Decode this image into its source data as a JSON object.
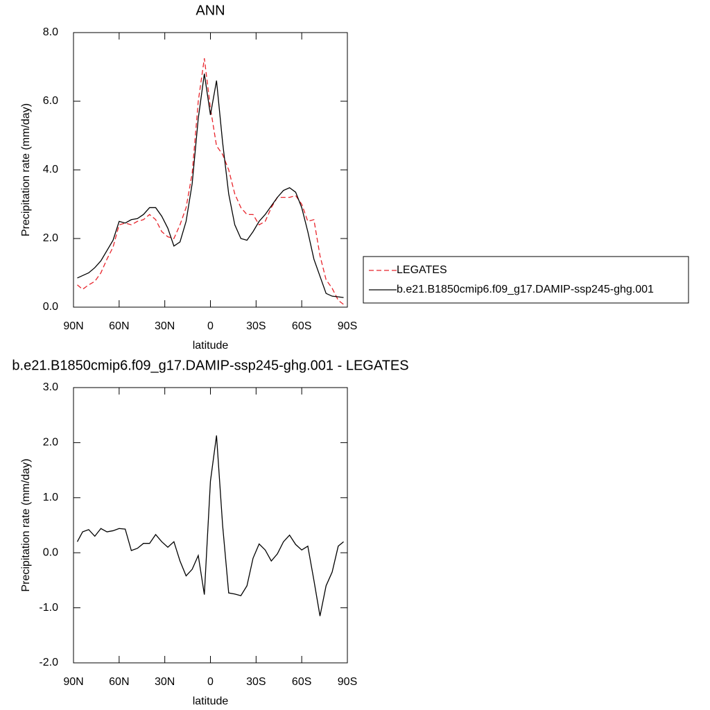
{
  "chart_data": [
    {
      "type": "line",
      "title": "ANN",
      "xlabel": "latitude",
      "ylabel": "Precipitation rate (mm/day)",
      "x": [
        87.5,
        84,
        80,
        76,
        72,
        68,
        64,
        60,
        56,
        52,
        48,
        44,
        40,
        36,
        32,
        28,
        24,
        20,
        16,
        12,
        8,
        4,
        0,
        -4,
        -8,
        -12,
        -16,
        -20,
        -24,
        -28,
        -32,
        -36,
        -40,
        -44,
        -48,
        -52,
        -56,
        -60,
        -64,
        -68,
        -72,
        -76,
        -80,
        -84,
        -87.5
      ],
      "series": [
        {
          "name": "LEGATES",
          "color": "#e8232a",
          "linestyle": "dashed",
          "values": [
            0.65,
            0.52,
            0.65,
            0.75,
            1.0,
            1.4,
            1.75,
            2.4,
            2.45,
            2.4,
            2.5,
            2.55,
            2.7,
            2.55,
            2.2,
            2.05,
            2.0,
            2.4,
            2.9,
            3.9,
            6.0,
            7.25,
            5.8,
            4.7,
            4.45,
            4.0,
            3.3,
            2.9,
            2.7,
            2.7,
            2.4,
            2.5,
            2.9,
            3.2,
            3.2,
            3.2,
            3.25,
            3.0,
            2.5,
            2.55,
            1.5,
            0.8,
            0.55,
            0.2,
            0.08
          ]
        },
        {
          "name": "b.e21.B1850cmip6.f09_g17.DAMIP-ssp245-ghg.001",
          "color": "#000000",
          "linestyle": "solid",
          "values": [
            0.85,
            0.92,
            1.0,
            1.15,
            1.35,
            1.65,
            1.95,
            2.5,
            2.45,
            2.55,
            2.58,
            2.7,
            2.9,
            2.9,
            2.65,
            2.3,
            1.78,
            1.9,
            2.5,
            3.6,
            5.5,
            6.8,
            5.6,
            6.6,
            4.8,
            3.3,
            2.4,
            2.0,
            1.95,
            2.2,
            2.5,
            2.7,
            2.95,
            3.2,
            3.4,
            3.48,
            3.35,
            2.9,
            2.2,
            1.4,
            0.9,
            0.4,
            0.32,
            0.3,
            0.28
          ]
        }
      ],
      "xlim": [
        90,
        -90
      ],
      "xticks": [
        {
          "value": 90,
          "label": "90N"
        },
        {
          "value": 60,
          "label": "60N"
        },
        {
          "value": 30,
          "label": "30N"
        },
        0,
        {
          "value": -30,
          "label": "30S"
        },
        {
          "value": -60,
          "label": "60S"
        },
        {
          "value": -90,
          "label": "90S"
        }
      ],
      "ylim": [
        0,
        8
      ],
      "yticks": [
        {
          "value": 0,
          "label": "0.0"
        },
        {
          "value": 2,
          "label": "2.0"
        },
        {
          "value": 4,
          "label": "4.0"
        },
        {
          "value": 6,
          "label": "6.0"
        },
        {
          "value": 8,
          "label": "8.0"
        }
      ],
      "legend": "outside-right"
    },
    {
      "type": "line",
      "title": "b.e21.B1850cmip6.f09_g17.DAMIP-ssp245-ghg.001 - LEGATES",
      "xlabel": "latitude",
      "ylabel": "Precipitation rate (mm/day)",
      "x": [
        87.5,
        84,
        80,
        76,
        72,
        68,
        64,
        60,
        56,
        52,
        48,
        44,
        40,
        36,
        32,
        28,
        24,
        20,
        16,
        12,
        8,
        4,
        0,
        -4,
        -8,
        -12,
        -16,
        -20,
        -24,
        -28,
        -32,
        -36,
        -40,
        -44,
        -48,
        -52,
        -56,
        -60,
        -64,
        -68,
        -72,
        -76,
        -80,
        -84,
        -87.5
      ],
      "series": [
        {
          "color": "#000000",
          "linestyle": "solid",
          "values": [
            0.2,
            0.38,
            0.42,
            0.3,
            0.44,
            0.38,
            0.4,
            0.44,
            0.43,
            0.04,
            0.08,
            0.17,
            0.17,
            0.33,
            0.2,
            0.1,
            0.2,
            -0.15,
            -0.42,
            -0.3,
            -0.05,
            -0.76,
            1.3,
            2.13,
            0.5,
            -0.73,
            -0.75,
            -0.78,
            -0.6,
            -0.1,
            0.16,
            0.05,
            -0.15,
            -0.02,
            0.2,
            0.32,
            0.15,
            0.05,
            0.12,
            -0.5,
            -1.15,
            -0.6,
            -0.35,
            0.12,
            0.2
          ]
        }
      ],
      "xlim": [
        90,
        -90
      ],
      "xticks": [
        {
          "value": 90,
          "label": "90N"
        },
        {
          "value": 60,
          "label": "60N"
        },
        {
          "value": 30,
          "label": "30N"
        },
        0,
        {
          "value": -30,
          "label": "30S"
        },
        {
          "value": -60,
          "label": "60S"
        },
        {
          "value": -90,
          "label": "90S"
        }
      ],
      "ylim": [
        -2,
        3
      ],
      "yticks": [
        {
          "value": -2,
          "label": "-2.0"
        },
        {
          "value": -1,
          "label": "-1.0"
        },
        {
          "value": 0,
          "label": "0.0"
        },
        {
          "value": 1,
          "label": "1.0"
        },
        {
          "value": 2,
          "label": "2.0"
        },
        {
          "value": 3,
          "label": "3.0"
        }
      ]
    }
  ]
}
